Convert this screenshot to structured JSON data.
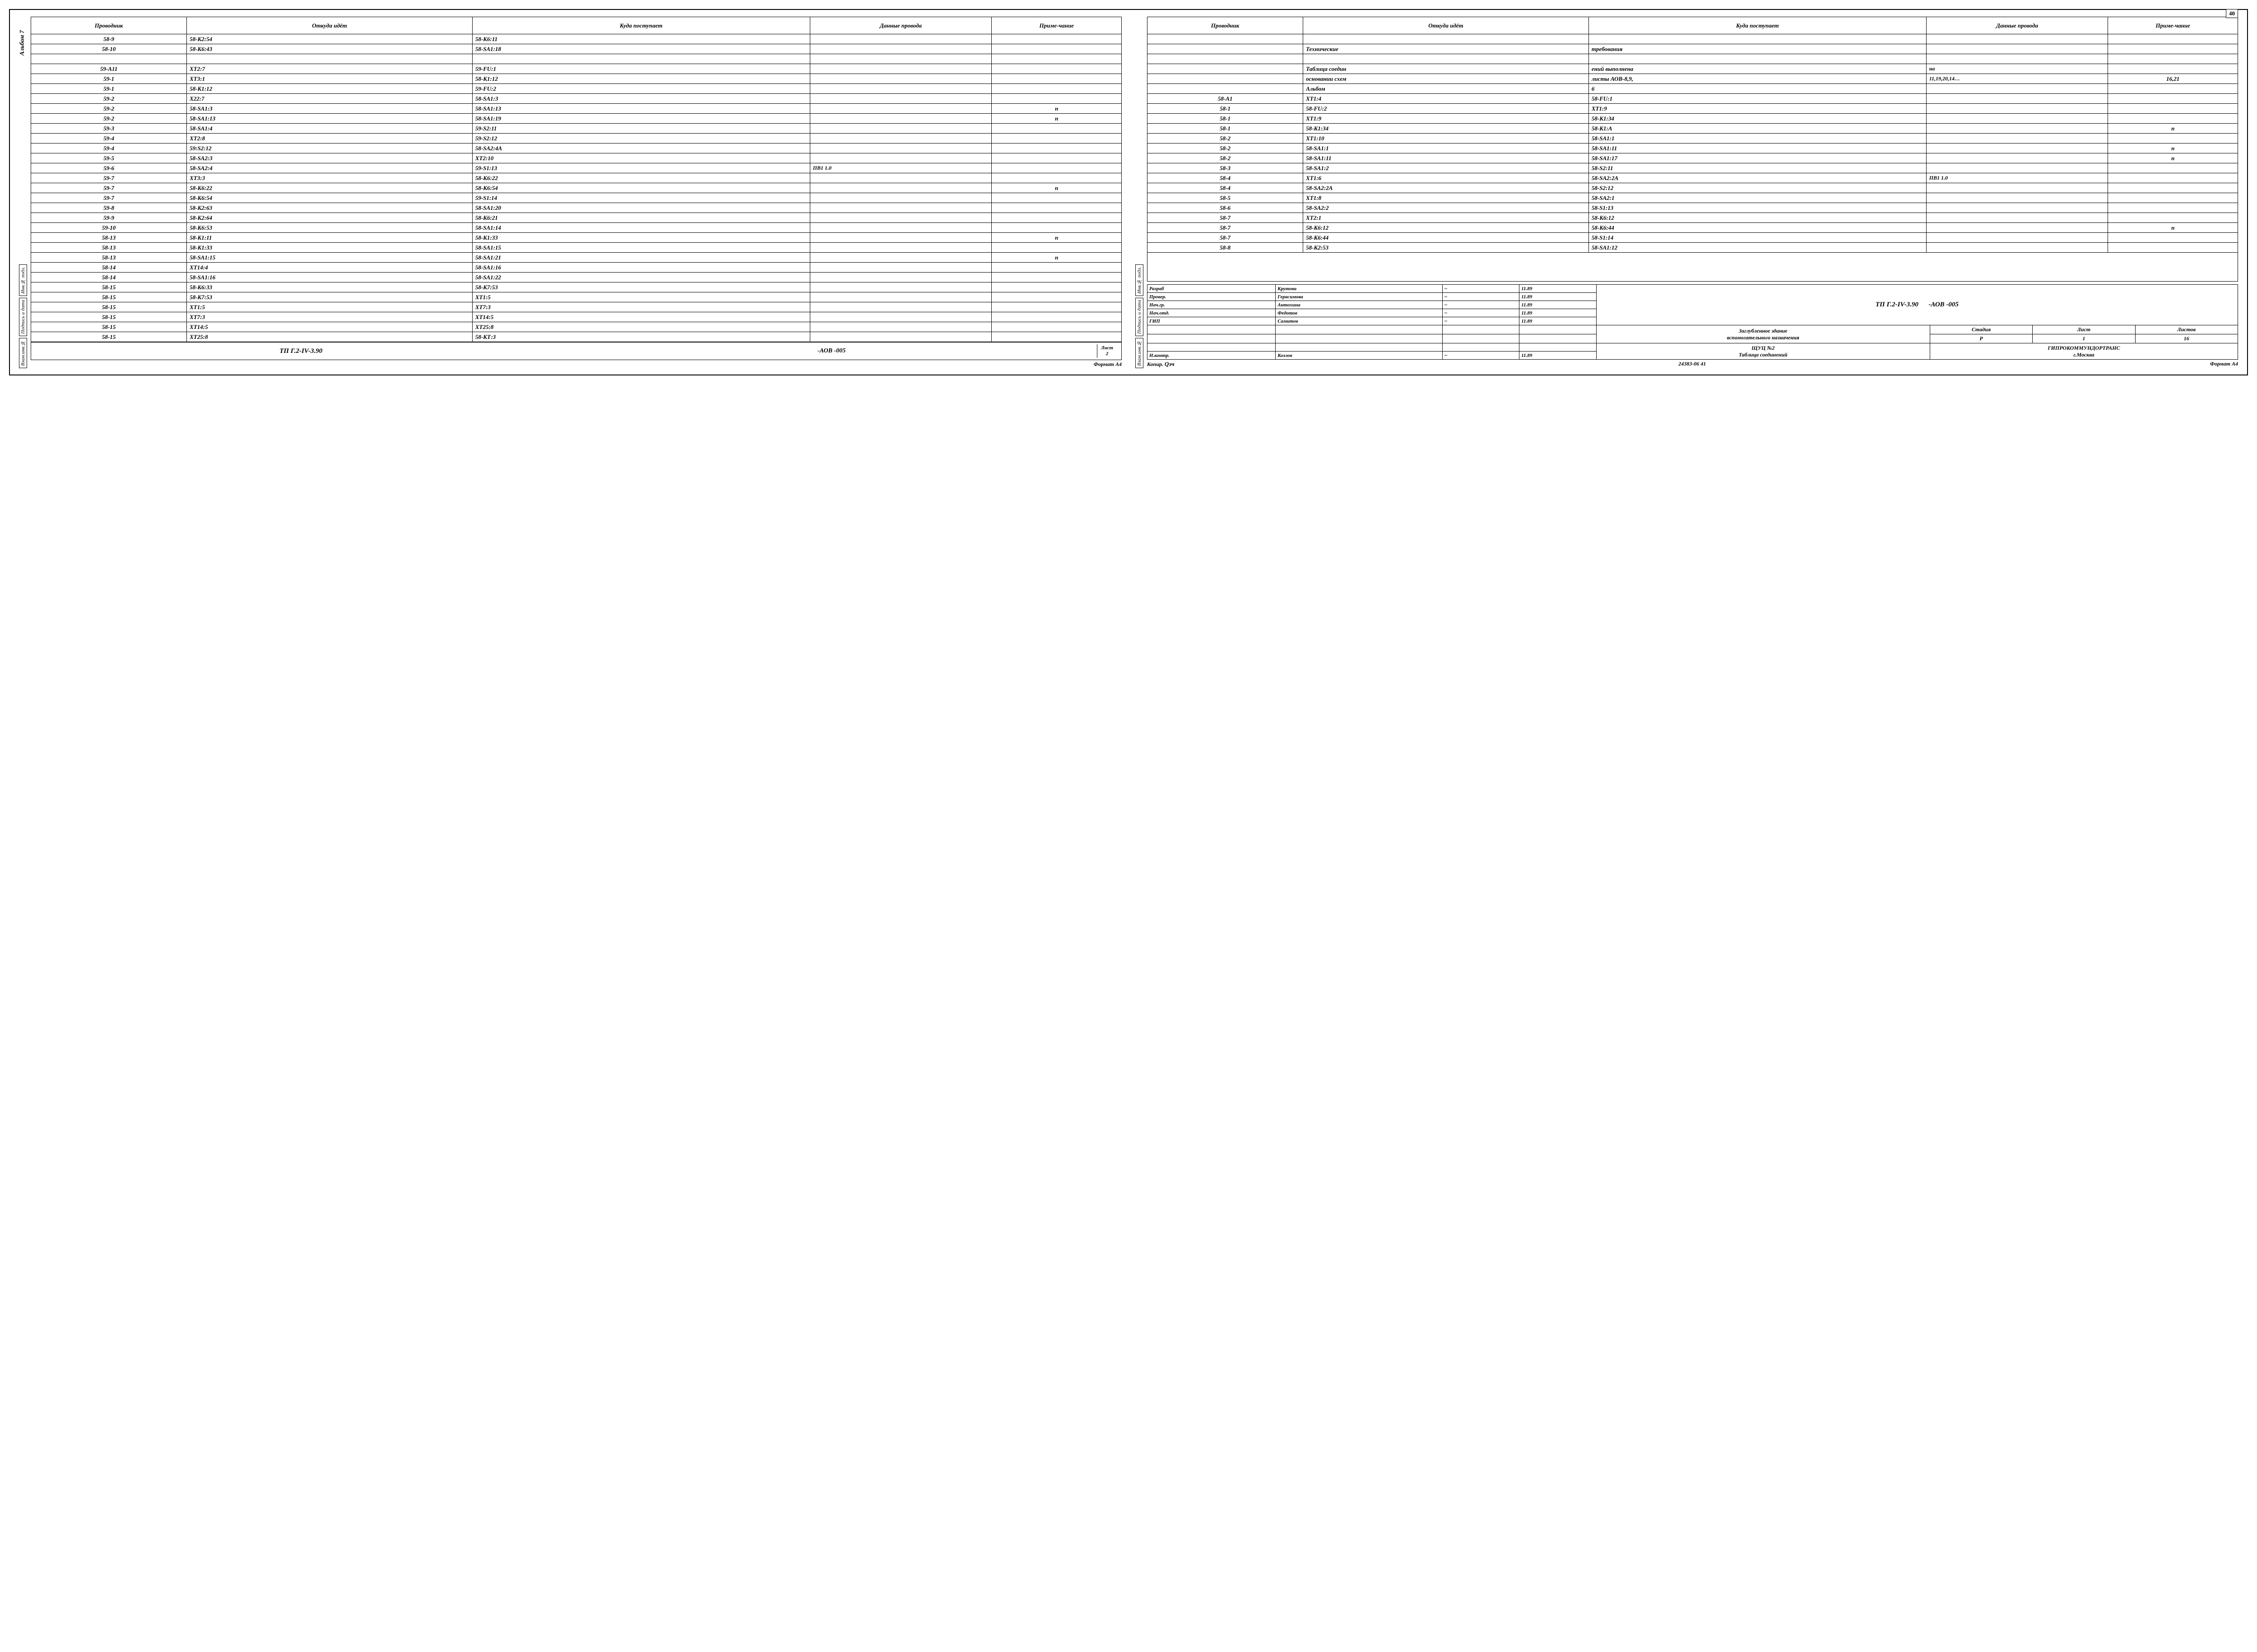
{
  "page_number_top": "40",
  "album_label": "Альбом 7",
  "side_labels": {
    "vzam": "Взам.инв.№",
    "podp": "Подпись и дата",
    "inv": "Инв.№ подл."
  },
  "headers": {
    "c1": "Проводник",
    "c2": "Откуда идёт",
    "c3": "Куда поступает",
    "c4": "Данные провода",
    "c5": "Приме-чание"
  },
  "left_rows": [
    {
      "c1": "58-9",
      "c2": "58-К2:54",
      "c3": "58-К6:11",
      "c4": "",
      "c5": ""
    },
    {
      "c1": "58-10",
      "c2": "58-К6:43",
      "c3": "58-SA1:18",
      "c4": "",
      "c5": ""
    },
    {
      "c1": "",
      "c2": "",
      "c3": "",
      "c4": "",
      "c5": ""
    },
    {
      "c1": "59-А11",
      "c2": "ХТ2:7",
      "c3": "59-FU:1",
      "c4": "",
      "c5": ""
    },
    {
      "c1": "59-1",
      "c2": "ХТ3:1",
      "c3": "58-К1:12",
      "c4": "",
      "c5": ""
    },
    {
      "c1": "59-1",
      "c2": "58-К1:12",
      "c3": "59-FU:2",
      "c4": "",
      "c5": ""
    },
    {
      "c1": "59-2",
      "c2": "Х22:7",
      "c3": "58-SA1:3",
      "c4": "",
      "c5": ""
    },
    {
      "c1": "59-2",
      "c2": "58-SA1:3",
      "c3": "58-SA1:13",
      "c4": "",
      "c5": "п"
    },
    {
      "c1": "59-2",
      "c2": "58-SA1:13",
      "c3": "58-SA1:19",
      "c4": "",
      "c5": "п"
    },
    {
      "c1": "59-3",
      "c2": "58-SA1:4",
      "c3": "59-S2:11",
      "c4": "",
      "c5": ""
    },
    {
      "c1": "59-4",
      "c2": "ХТ2:8",
      "c3": "59-S2:12",
      "c4": "",
      "c5": ""
    },
    {
      "c1": "59-4",
      "c2": "59:S2:12",
      "c3": "58-SA2:4A",
      "c4": "",
      "c5": ""
    },
    {
      "c1": "59-5",
      "c2": "58-SA2:3",
      "c3": "ХТ2:10",
      "c4": "",
      "c5": ""
    },
    {
      "c1": "59-6",
      "c2": "58-SA2:4",
      "c3": "59-S1:13",
      "c4": "ПВ1 1.0",
      "c5": ""
    },
    {
      "c1": "59-7",
      "c2": "ХТ3:3",
      "c3": "58-К6:22",
      "c4": "",
      "c5": ""
    },
    {
      "c1": "59-7",
      "c2": "58-К6:22",
      "c3": "58-К6:54",
      "c4": "",
      "c5": "п"
    },
    {
      "c1": "59-7",
      "c2": "58-К6:54",
      "c3": "59-S1:14",
      "c4": "",
      "c5": ""
    },
    {
      "c1": "59-8",
      "c2": "58-К2:63",
      "c3": "58-SA1:20",
      "c4": "",
      "c5": ""
    },
    {
      "c1": "59-9",
      "c2": "58-К2:64",
      "c3": "58-К6:21",
      "c4": "",
      "c5": ""
    },
    {
      "c1": "59-10",
      "c2": "58-К6:53",
      "c3": "58-SA1:14",
      "c4": "",
      "c5": ""
    },
    {
      "c1": "58-13",
      "c2": "58-К1:11",
      "c3": "58-К1:33",
      "c4": "",
      "c5": "п"
    },
    {
      "c1": "58-13",
      "c2": "58-К1:33",
      "c3": "58-SA1:15",
      "c4": "",
      "c5": ""
    },
    {
      "c1": "58-13",
      "c2": "58-SA1:15",
      "c3": "58-SA1:21",
      "c4": "",
      "c5": "п"
    },
    {
      "c1": "58-14",
      "c2": "ХТ14:4",
      "c3": "58-SA1:16",
      "c4": "",
      "c5": ""
    },
    {
      "c1": "58-14",
      "c2": "58-SA1:16",
      "c3": "58-SA1:22",
      "c4": "",
      "c5": ""
    },
    {
      "c1": "58-15",
      "c2": "58-К6:33",
      "c3": "58-К7:53",
      "c4": "",
      "c5": ""
    },
    {
      "c1": "58-15",
      "c2": "58-К7:53",
      "c3": "ХТ1:5",
      "c4": "",
      "c5": ""
    },
    {
      "c1": "58-15",
      "c2": "ХТ1:5",
      "c3": "ХТ7:3",
      "c4": "",
      "c5": ""
    },
    {
      "c1": "58-15",
      "c2": "ХТ7:3",
      "c3": "ХТ14:5",
      "c4": "",
      "c5": ""
    },
    {
      "c1": "58-15",
      "c2": "ХТ14:5",
      "c3": "ХТ25:8",
      "c4": "",
      "c5": ""
    },
    {
      "c1": "58-15",
      "c2": "ХТ25:8",
      "c3": "58-КТ:3",
      "c4": "",
      "c5": ""
    }
  ],
  "right_rows": [
    {
      "c1": "",
      "c2": "",
      "c3": "",
      "c4": "",
      "c5": ""
    },
    {
      "c1": "",
      "c2": "Технические",
      "c3": "требования",
      "c4": "",
      "c5": ""
    },
    {
      "c1": "",
      "c2": "",
      "c3": "",
      "c4": "",
      "c5": ""
    },
    {
      "c1": "",
      "c2": "Таблица соедин",
      "c3": "ений выполнена",
      "c4": "на",
      "c5": ""
    },
    {
      "c1": "",
      "c2": "основании схем",
      "c3": "листы АОВ-8,9,",
      "c4": "11,19,20,14…",
      "c5": "16,21"
    },
    {
      "c1": "",
      "c2": "Альбом",
      "c3": "6",
      "c4": "",
      "c5": ""
    },
    {
      "c1": "58-А1",
      "c2": "ХТ1:4",
      "c3": "58-FU:1",
      "c4": "",
      "c5": ""
    },
    {
      "c1": "58-1",
      "c2": "58-FU:2",
      "c3": "ХТ1:9",
      "c4": "",
      "c5": ""
    },
    {
      "c1": "58-1",
      "c2": "ХТ1:9",
      "c3": "58-К1:34",
      "c4": "",
      "c5": ""
    },
    {
      "c1": "58-1",
      "c2": "58-К1:34",
      "c3": "58-К1:А",
      "c4": "",
      "c5": "п"
    },
    {
      "c1": "58-2",
      "c2": "ХТ1:10",
      "c3": "58-SA1:1",
      "c4": "",
      "c5": ""
    },
    {
      "c1": "58-2",
      "c2": "58-SA1:1",
      "c3": "58-SA1:11",
      "c4": "",
      "c5": "п"
    },
    {
      "c1": "58-2",
      "c2": "58-SA1:11",
      "c3": "58-SA1:17",
      "c4": "",
      "c5": "п"
    },
    {
      "c1": "58-3",
      "c2": "58-SA1:2",
      "c3": "58-S2:11",
      "c4": "",
      "c5": ""
    },
    {
      "c1": "58-4",
      "c2": "ХТ1:6",
      "c3": "58-SA2:2A",
      "c4": "ПВ1 1.0",
      "c5": ""
    },
    {
      "c1": "58-4",
      "c2": "58-SA2:2A",
      "c3": "58-S2:12",
      "c4": "",
      "c5": ""
    },
    {
      "c1": "58-5",
      "c2": "ХТ1:8",
      "c3": "58-SA2:1",
      "c4": "",
      "c5": ""
    },
    {
      "c1": "58-6",
      "c2": "58-SA2:2",
      "c3": "58-S1:13",
      "c4": "",
      "c5": ""
    },
    {
      "c1": "58-7",
      "c2": "ХТ2:1",
      "c3": "58-К6:12",
      "c4": "",
      "c5": ""
    },
    {
      "c1": "58-7",
      "c2": "58-К6:12",
      "c3": "58-К6:44",
      "c4": "",
      "c5": "п"
    },
    {
      "c1": "58-7",
      "c2": "58-К6:44",
      "c3": "58-S1:14",
      "c4": "",
      "c5": ""
    },
    {
      "c1": "58-8",
      "c2": "58-К2:53",
      "c3": "58-SA1:12",
      "c4": "",
      "c5": ""
    }
  ],
  "title_small": {
    "tp": "ТП   Г.2-IV-3.90",
    "aob": "-АОВ -005",
    "list_label": "Лист",
    "list_num": "2"
  },
  "format_a4": "Формат А4",
  "stamp": {
    "roles": [
      {
        "r": "Разраб",
        "n": "Крутова",
        "d": "11.89"
      },
      {
        "r": "Провер.",
        "n": "Герасимова",
        "d": "11.89"
      },
      {
        "r": "Нач.гр.",
        "n": "Антохина",
        "d": "11.89"
      },
      {
        "r": "Нач.отд.",
        "n": "Федотов",
        "d": "11.89"
      },
      {
        "r": "ГИП",
        "n": "Самитов",
        "d": "11.89"
      }
    ],
    "nkontr": {
      "r": "Н.контр.",
      "n": "Козлов",
      "d": "11.89"
    },
    "doc_code": "ТП   Г.2-IV-3.90",
    "doc_suffix": "-АОВ -005",
    "title1": "Заглубленное здание",
    "title2": "вспомогательного назначения",
    "title3": "ЩУЦ №2",
    "title4": "Таблица соединений",
    "stage_h": "Стадия",
    "list_h": "Лист",
    "lists_h": "Листов",
    "stage": "Р",
    "list": "1",
    "lists": "16",
    "org1": "ГИПРОКОММУНДОРТРАНС",
    "org2": "г.Москва"
  },
  "footer": {
    "kopir": "Копир.",
    "num": "24383-06  41",
    "format": "Формат А4"
  }
}
